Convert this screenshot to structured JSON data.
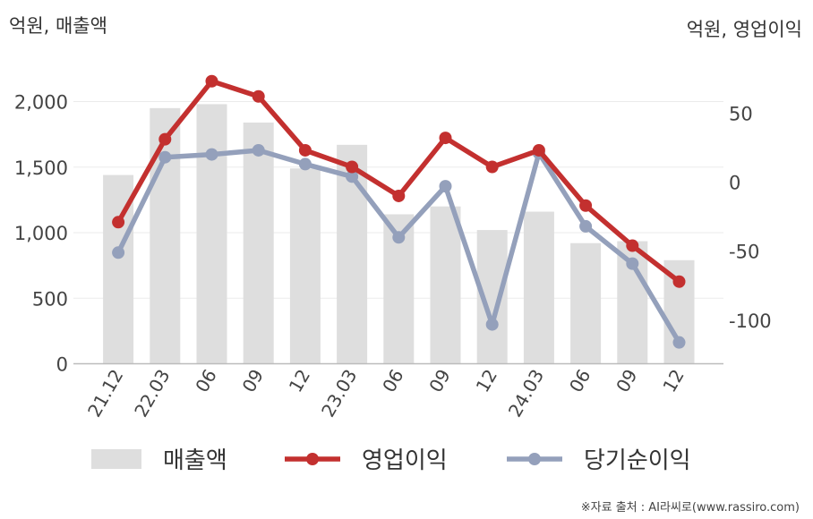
{
  "units": {
    "left": "억원, 매출액",
    "right": "억원, 영업이익"
  },
  "source": "※자료 출처 : AI라씨로(www.rassiro.com)",
  "colors": {
    "bar": "#dedede",
    "operating": "#c3302f",
    "net": "#94a0bb",
    "grid": "#ebebeb",
    "axis": "#bbbbbb"
  },
  "chart_data": {
    "type": "bar+line",
    "categories": [
      "21.12",
      "22.03",
      "06",
      "09",
      "12",
      "23.03",
      "06",
      "09",
      "12",
      "24.03",
      "06",
      "09",
      "12"
    ],
    "left_axis": {
      "ylim": [
        0,
        2100
      ],
      "ticks": [
        0,
        500,
        1000,
        1500,
        2000
      ],
      "tick_labels": [
        "0",
        "500",
        "1,000",
        "1,500",
        "2,000"
      ]
    },
    "right_axis": {
      "ylim": [
        -133,
        80
      ],
      "ticks": [
        -100,
        -50,
        0,
        50
      ],
      "tick_labels": [
        "-100",
        "-50",
        "0",
        "50"
      ]
    },
    "series": [
      {
        "name": "매출액",
        "type": "bar",
        "axis": "left",
        "values": [
          1440,
          1950,
          1980,
          1840,
          1490,
          1670,
          1140,
          1200,
          1020,
          1160,
          920,
          935,
          790
        ]
      },
      {
        "name": "영업이익",
        "type": "line",
        "axis": "right",
        "values": [
          -29,
          31,
          73,
          62,
          23,
          11,
          -10,
          32,
          11,
          23,
          -17,
          -46,
          -72
        ]
      },
      {
        "name": "당기순이익",
        "type": "line",
        "axis": "right",
        "values": [
          -51,
          18,
          20,
          23,
          13,
          4,
          -40,
          -3,
          -103,
          21,
          -32,
          -59,
          -116
        ]
      }
    ],
    "legend": [
      "매출액",
      "영업이익",
      "당기순이익"
    ],
    "legend_position": "bottom"
  }
}
